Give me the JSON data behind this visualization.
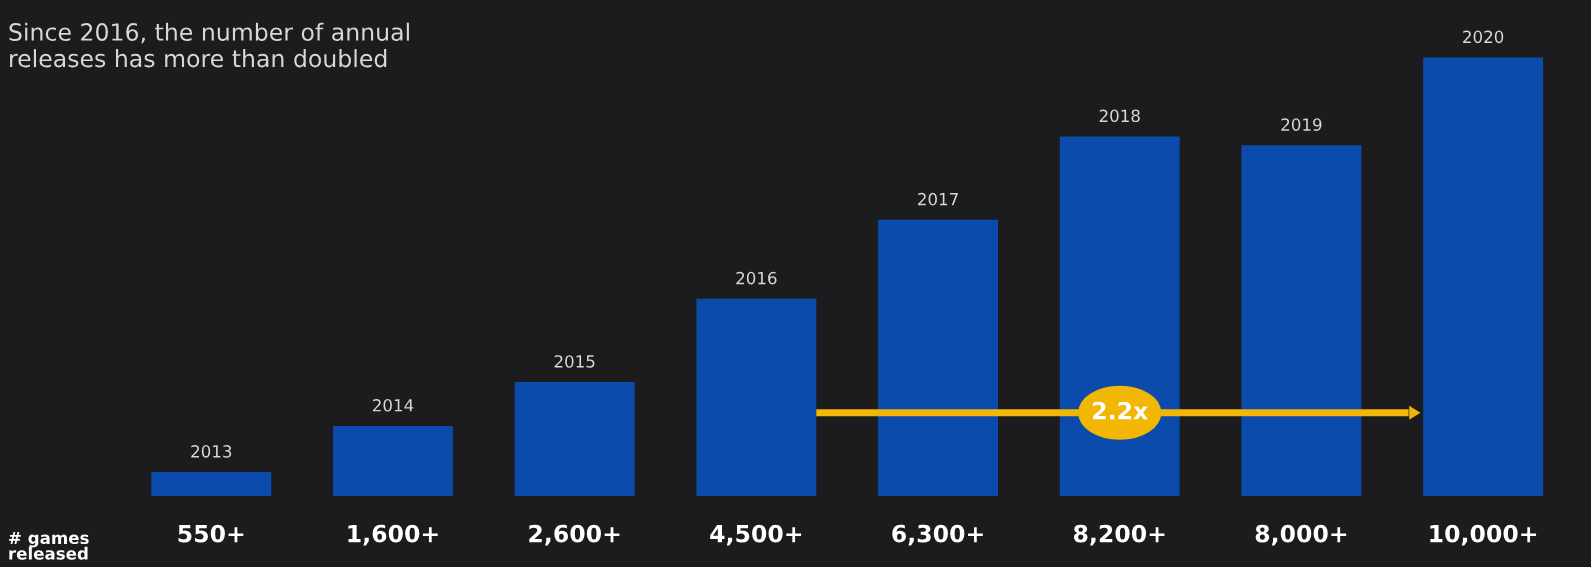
{
  "chart_data": {
    "type": "bar",
    "title": "Since 2016, the number of annual\nreleases has more than doubled",
    "categories": [
      "2013",
      "2014",
      "2015",
      "2016",
      "2017",
      "2018",
      "2019",
      "2020"
    ],
    "values": [
      550,
      1600,
      2600,
      4500,
      6300,
      8200,
      8000,
      10000
    ],
    "value_labels": [
      "550+",
      "1,600+",
      "2,600+",
      "4,500+",
      "6,300+",
      "8,200+",
      "8,000+",
      "10,000+"
    ],
    "color": "#0b4bab",
    "annotations": [
      "# games\nreleased",
      "2.2x"
    ]
  }
}
